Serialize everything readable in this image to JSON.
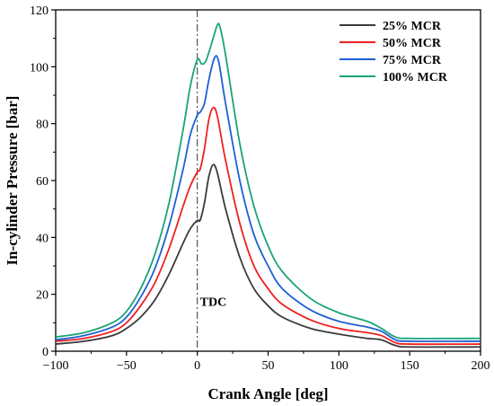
{
  "chart_data": {
    "type": "line",
    "xlabel": "Crank Angle [deg]",
    "ylabel": "In-cylinder Pressure [bar]",
    "xlim": [
      -100,
      200
    ],
    "ylim": [
      0,
      120
    ],
    "xticks": [
      -100,
      -50,
      0,
      50,
      100,
      150,
      200
    ],
    "yticks": [
      0,
      20,
      40,
      60,
      80,
      100,
      120
    ],
    "xtick_labels": [
      "−100",
      "−50",
      "0",
      "50",
      "100",
      "150",
      "200"
    ],
    "ytick_labels": [
      "0",
      "20",
      "40",
      "60",
      "80",
      "100",
      "120"
    ],
    "grid": false,
    "legend_position": "top-right",
    "annotation": {
      "text": "TDC",
      "x": 0,
      "line_style": "dash-dot vertical line"
    },
    "series": [
      {
        "name": "25% MCR",
        "color": "#3a3a3a",
        "x": [
          -100,
          -80,
          -60,
          -50,
          -40,
          -30,
          -20,
          -10,
          -5,
          0,
          2,
          5,
          8,
          11,
          14,
          20,
          30,
          40,
          50,
          60,
          80,
          100,
          120,
          130,
          140,
          150,
          200
        ],
        "y": [
          2.5,
          3.5,
          5.5,
          8,
          12,
          18,
          27,
          38,
          43,
          46,
          46,
          52,
          61,
          65.5,
          63,
          50,
          33,
          22,
          16,
          12,
          8,
          6,
          4.5,
          4,
          2,
          1.5,
          1.5
        ]
      },
      {
        "name": "50% MCR",
        "color": "#ee2020",
        "x": [
          -100,
          -80,
          -60,
          -50,
          -40,
          -30,
          -20,
          -10,
          -5,
          0,
          2,
          5,
          8,
          11,
          14,
          20,
          30,
          40,
          50,
          60,
          80,
          100,
          120,
          130,
          140,
          150,
          200
        ],
        "y": [
          3.5,
          4.5,
          7,
          10,
          16,
          24,
          36,
          51,
          58,
          63,
          64,
          71,
          81,
          85.5,
          83,
          67,
          45,
          30,
          22,
          16.5,
          11,
          8,
          6.5,
          5.5,
          3,
          2.5,
          2.5
        ]
      },
      {
        "name": "75% MCR",
        "color": "#1e5fd6",
        "x": [
          -100,
          -80,
          -60,
          -50,
          -40,
          -30,
          -20,
          -10,
          -5,
          0,
          2,
          5,
          8,
          12,
          15,
          20,
          30,
          40,
          50,
          60,
          80,
          100,
          120,
          130,
          140,
          150,
          200
        ],
        "y": [
          4,
          5.5,
          8.5,
          12,
          19,
          29,
          44,
          64,
          76,
          83,
          84,
          87,
          95,
          103,
          102,
          87,
          60,
          41,
          30,
          22,
          14.5,
          10.5,
          8.5,
          7,
          4,
          3.5,
          3.5
        ]
      },
      {
        "name": "100% MCR",
        "color": "#1aa37a",
        "x": [
          -100,
          -80,
          -60,
          -50,
          -40,
          -30,
          -20,
          -10,
          -5,
          0,
          3,
          6,
          10,
          14,
          16,
          20,
          30,
          40,
          50,
          60,
          80,
          100,
          120,
          130,
          140,
          150,
          200
        ],
        "y": [
          5,
          6.5,
          10,
          14,
          22,
          34,
          52,
          78,
          93,
          102.5,
          101,
          102,
          108,
          114.5,
          114,
          104,
          73,
          51,
          37,
          28,
          18.5,
          13.5,
          10.5,
          8,
          5,
          4.5,
          4.5
        ]
      }
    ]
  }
}
